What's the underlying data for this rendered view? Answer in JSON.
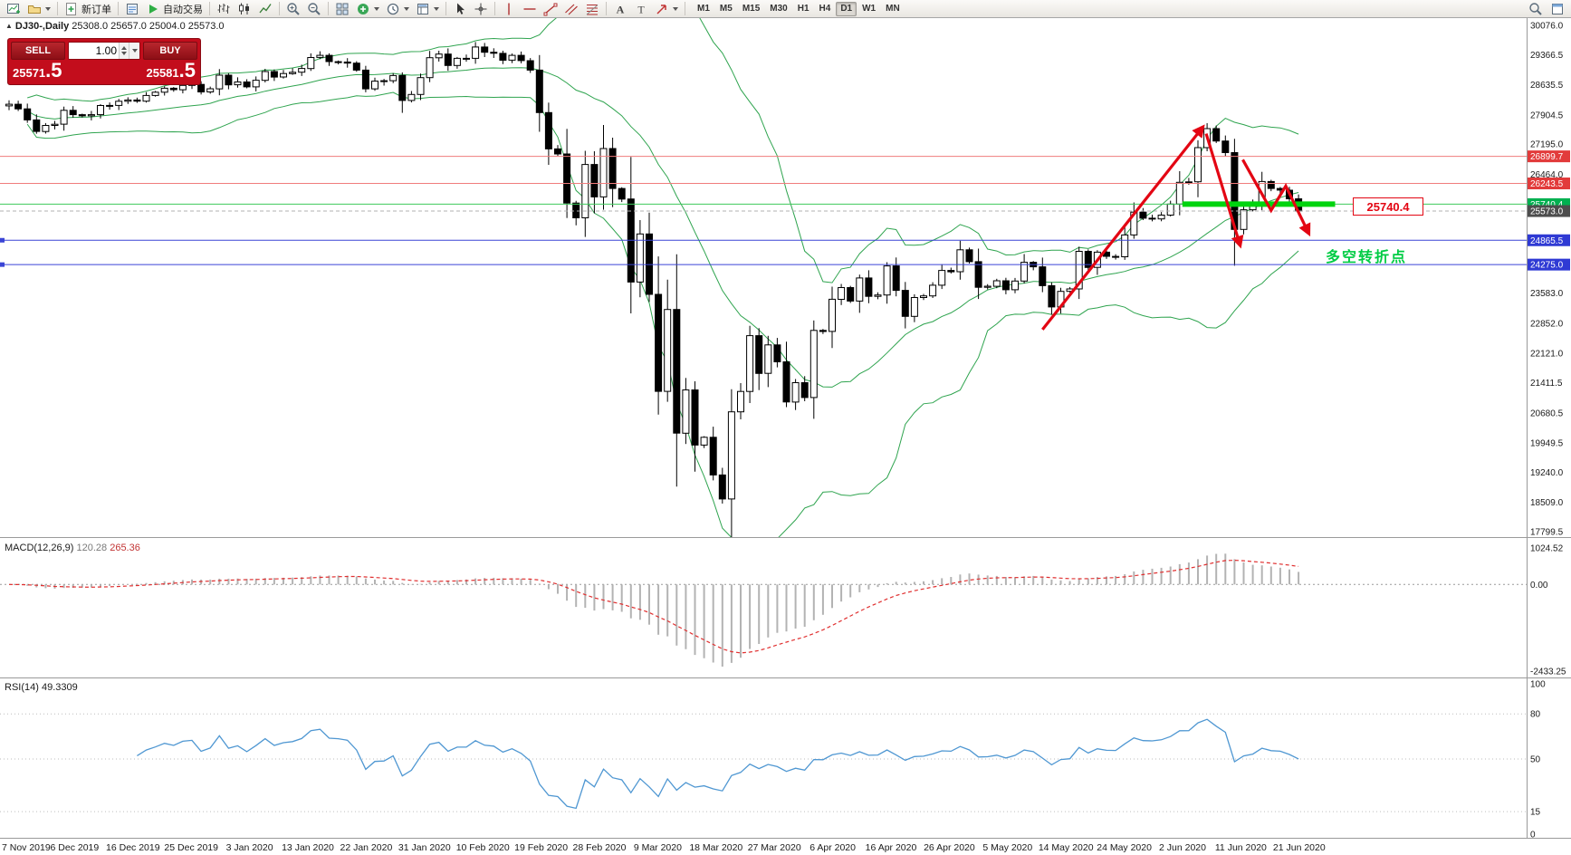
{
  "toolbar": {
    "new_order_label": "新订单",
    "autotrading_label": "自动交易",
    "timeframes": [
      "M1",
      "M5",
      "M15",
      "M30",
      "H1",
      "H4",
      "D1",
      "W1",
      "MN"
    ],
    "active_timeframe": "D1"
  },
  "chart": {
    "collapse": "▲",
    "title": "DJ30-,Daily",
    "ohlc": "25308.0 25657.0 25004.0 25573.0"
  },
  "trade_panel": {
    "sell_label": "SELL",
    "buy_label": "BUY",
    "volume": "1.00",
    "bid_small": "25571",
    "bid_big": ".5",
    "ask_small": "25581",
    "ask_big": ".5"
  },
  "macd": {
    "label": "MACD(12,26,9)",
    "value_main": "120.28",
    "value_signal": "265.36"
  },
  "rsi": {
    "label": "RSI(14)",
    "value": "49.3309"
  },
  "annotations": {
    "price_label": "25740.4",
    "turning_point": "多空转折点"
  },
  "levels": [
    {
      "value": "26899.7",
      "price": 26899.7,
      "line": "#f07d7d",
      "tag": "#e23b3b",
      "style": "solid"
    },
    {
      "value": "26243.5",
      "price": 26243.5,
      "line": "#f07d7d",
      "tag": "#e23b3b",
      "style": "solid"
    },
    {
      "value": "25740.4",
      "price": 25740.4,
      "line": "#3fc95c",
      "tag": "#00b050",
      "style": "solid"
    },
    {
      "value": "25573.0",
      "price": 25573.0,
      "line": "#b0b0b0",
      "tag": "#4d4d4d",
      "style": "dash"
    },
    {
      "value": "24865.5",
      "price": 24865.5,
      "line": "#3a45d6",
      "tag": "#2f3ad4",
      "style": "solid",
      "handle": true
    },
    {
      "value": "24275.0",
      "price": 24275.0,
      "line": "#3a45d6",
      "tag": "#2f3ad4",
      "style": "solid",
      "handle": true
    }
  ],
  "axis": {
    "price_labels": [
      30076.0,
      29366.5,
      28635.5,
      27904.5,
      27195.0,
      26464.0,
      23583.0,
      22852.0,
      22121.0,
      21411.5,
      20680.5,
      19949.5,
      19240.0,
      18509.0,
      17799.5
    ],
    "macd_labels": [
      {
        "text": "1024.52",
        "v": 1024.52
      },
      {
        "text": "0.00",
        "v": 0
      },
      {
        "text": "-2433.25",
        "v": -2433.25
      }
    ],
    "rsi_labels": [
      {
        "text": "100",
        "v": 100
      },
      {
        "text": "80",
        "v": 80
      },
      {
        "text": "50",
        "v": 50
      },
      {
        "text": "15",
        "v": 15
      },
      {
        "text": "0",
        "v": 0
      }
    ],
    "rsi_levels": [
      80,
      50,
      15
    ],
    "dates": [
      "7 Nov 2019",
      "6 Dec 2019",
      "16 Dec 2019",
      "25 Dec 2019",
      "3 Jan 2020",
      "13 Jan 2020",
      "22 Jan 2020",
      "31 Jan 2020",
      "10 Feb 2020",
      "19 Feb 2020",
      "28 Feb 2020",
      "9 Mar 2020",
      "18 Mar 2020",
      "27 Mar 2020",
      "6 Apr 2020",
      "16 Apr 2020",
      "26 Apr 2020",
      "5 May 2020",
      "14 May 2020",
      "24 May 2020",
      "2 Jun 2020",
      "11 Jun 2020",
      "21 Jun 2020"
    ]
  },
  "colors": {
    "bands": "#2fa44f",
    "arrow": "#e30613",
    "segment": "#00d40e",
    "macd_signal": "#e03030",
    "macd_hist": "#b3b3b3",
    "rsi": "#4f97d2",
    "axis_text": "#1a1a1a",
    "separator": "#9a9a9a"
  },
  "chart_data": {
    "type": "candlestick",
    "symbol": "DJ30-",
    "period": "Daily",
    "ohlc_display": {
      "open": 25308.0,
      "high": 25657.0,
      "low": 25004.0,
      "close": 25573.0
    },
    "quote": {
      "bid": 25571.5,
      "ask": 25581.5
    },
    "price_axis_range": [
      17799.5,
      30076.0
    ],
    "closes": [
      28164,
      28051,
      27783,
      27503,
      27650,
      27678,
      28015,
      27910,
      27882,
      27911,
      28132,
      28135,
      28236,
      28267,
      28239,
      28377,
      28455,
      28551,
      28515,
      28621,
      28645,
      28462,
      28538,
      28869,
      28635,
      28703,
      28584,
      28745,
      28957,
      28824,
      28907,
      28939,
      29030,
      29297,
      29348,
      29196,
      29186,
      29160,
      28990,
      28536,
      28723,
      28734,
      28859,
      28256,
      28400,
      28808,
      29291,
      29380,
      29103,
      29277,
      29276,
      29551,
      29423,
      29398,
      29232,
      29348,
      29220,
      28992,
      27961,
      27081,
      26958,
      25767,
      25409,
      26703,
      25917,
      27090,
      26121,
      25865,
      23851,
      25018,
      23553,
      21201,
      23186,
      20188,
      21237,
      19899,
      20087,
      19174,
      18592,
      20705,
      21200,
      22552,
      21637,
      22327,
      21917,
      20944,
      21413,
      21053,
      22680,
      22654,
      23434,
      23719,
      23391,
      23950,
      23504,
      23538,
      24242,
      23650,
      23019,
      23476,
      23515,
      23775,
      24134,
      24102,
      24634,
      24346,
      23724,
      23750,
      23883,
      23665,
      23876,
      24331,
      24222,
      23765,
      23248,
      23625,
      23685,
      24597,
      24207,
      24576,
      24474,
      24465,
      24995,
      25548,
      25401,
      25383,
      25475,
      25743,
      26270,
      26282,
      27111,
      27572,
      27272,
      26990,
      25128,
      25605,
      25763,
      26290,
      26120,
      26080,
      25871,
      25573
    ],
    "indicators": {
      "bollinger": {
        "period": 20,
        "deviation": 2
      },
      "macd": {
        "fast": 12,
        "slow": 26,
        "signal": 9,
        "current": [
          120.28,
          265.36
        ]
      },
      "rsi": {
        "period": 14,
        "current": 49.3309
      }
    },
    "drawings": [
      {
        "type": "segment",
        "from": {
          "bar": 128.3,
          "price": 25740.4
        },
        "to": {
          "bar": 145.0,
          "price": 25740.4
        }
      },
      {
        "type": "arrow",
        "from": {
          "bar": 113.0,
          "price": 22700
        },
        "to": {
          "bar": 130.5,
          "price": 27600
        }
      },
      {
        "type": "arrow",
        "from": {
          "bar": 130.9,
          "price": 27450
        },
        "to": {
          "bar": 134.6,
          "price": 24750
        }
      },
      {
        "type": "zigzag",
        "points": [
          {
            "bar": 134.9,
            "price": 26820
          },
          {
            "bar": 138.0,
            "price": 25590
          },
          {
            "bar": 139.6,
            "price": 26180
          },
          {
            "bar": 142.1,
            "price": 25040
          }
        ]
      }
    ]
  }
}
